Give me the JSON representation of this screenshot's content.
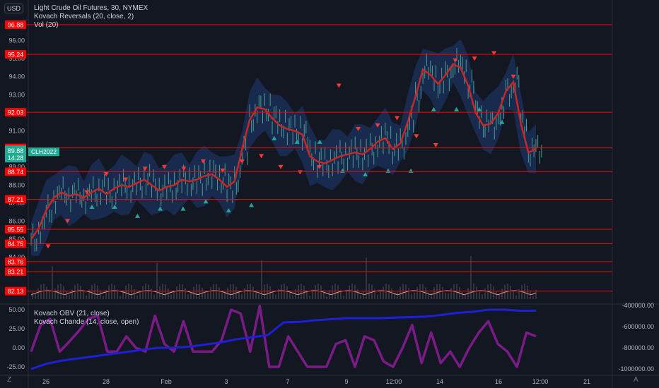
{
  "header": {
    "currency_button": "USD",
    "legend": [
      "Light Crude Oil Futures, 30, NYMEX",
      "Kovach Reversals (20, close, 2)",
      "Vol (20)"
    ],
    "lower_legend": [
      "Kovach OBV (21, close)",
      "Kovach Chande (14, close, open)"
    ]
  },
  "footer": {
    "z_button": "Z",
    "auto_button": "A"
  },
  "colors": {
    "background": "#131722",
    "level_line": "#ff0000",
    "level_tag": "#ff0000",
    "price_tag": "#22ab94",
    "ma_line": "#c62828",
    "band_fill": "#1e3a72",
    "candles": "#4a9d8f",
    "buy_marker": "#26a69a",
    "sell_marker": "#ef3b3b",
    "obv_line": "#1f1fd6",
    "chande_line": "#7b1b86",
    "volume_osc": "#e0a890"
  },
  "chart_data": [
    {
      "type": "line",
      "title": "Light Crude Oil Futures, 30, NYMEX",
      "x_ticks": [
        "26",
        "28",
        "Feb",
        "3",
        "7",
        "9",
        "12:00",
        "14",
        "16",
        "12:00",
        "21"
      ],
      "y_ticks": [
        "84.00",
        "85.00",
        "86.00",
        "87.00",
        "88.00",
        "89.00",
        "90.00",
        "91.00",
        "92.00",
        "93.00",
        "94.00",
        "95.00",
        "96.00"
      ],
      "ylim": [
        81.5,
        97.5
      ],
      "levels": [
        "96.88",
        "95.24",
        "92.03",
        "90.06",
        "88.74",
        "87.21",
        "85.55",
        "84.75",
        "83.76",
        "83.21",
        "82.13"
      ],
      "current_price": {
        "symbol": "CLH2022",
        "price": "89.88",
        "countdown": "14:28"
      },
      "series": [
        {
          "name": "Kovach Reversals (20, close, 2)",
          "values": [
            85.0,
            85.6,
            86.6,
            87.3,
            87.6,
            87.4,
            87.5,
            87.3,
            87.6,
            87.8,
            87.5,
            87.8,
            88.0,
            87.9,
            88.1,
            88.3,
            88.0,
            87.7,
            87.9,
            88.0,
            88.3,
            88.2,
            88.3,
            88.5,
            88.6,
            88.3,
            87.9,
            88.2,
            90.0,
            91.6,
            92.3,
            92.2,
            91.7,
            91.3,
            91.1,
            91.0,
            90.8,
            89.6,
            89.3,
            89.2,
            89.4,
            89.6,
            89.7,
            89.8,
            89.7,
            90.0,
            90.4,
            90.6,
            90.0,
            90.3,
            91.5,
            92.9,
            94.4,
            94.1,
            93.6,
            94.1,
            94.7,
            94.5,
            93.5,
            92.0,
            91.3,
            91.4,
            92.0,
            93.2,
            93.7,
            91.4,
            89.8,
            90.0
          ]
        }
      ],
      "signals": {
        "sell": [
          84.6,
          86.0,
          87.6,
          88.6,
          88.3,
          88.9,
          89.0,
          88.9,
          89.3,
          88.8,
          89.3,
          89.6,
          89.0,
          88.7,
          89.0,
          93.5,
          91.1,
          91.3,
          91.7,
          90.7,
          90.2,
          94.9,
          95.0,
          95.3,
          94.0
        ],
        "buy": [
          86.8,
          86.8,
          86.3,
          86.7,
          86.7,
          87.1,
          86.6,
          86.9,
          90.6,
          90.4,
          90.4,
          88.8,
          88.6,
          88.8,
          88.8,
          92.2,
          92.2,
          92.2,
          91.5
        ]
      }
    },
    {
      "type": "line",
      "y_ticks": [
        "-400000.00",
        "-600000.00",
        "-800000.00",
        "-1000000.00"
      ],
      "series": [
        {
          "name": "Kovach OBV (21, close)",
          "values": [
            -1000000,
            -950000,
            -920000,
            -900000,
            -880000,
            -860000,
            -840000,
            -820000,
            -800000,
            -800000,
            -790000,
            -770000,
            -750000,
            -720000,
            -700000,
            -680000,
            -560000,
            -555000,
            -540000,
            -530000,
            -520000,
            -520000,
            -520000,
            -515000,
            -510000,
            -505000,
            -490000,
            -470000,
            -460000,
            -440000,
            -440000,
            -450000,
            -450000
          ]
        }
      ]
    },
    {
      "type": "line",
      "y_ticks": [
        "50.00",
        "25.00",
        "0.00",
        "-25.00"
      ],
      "series": [
        {
          "name": "Kovach Chande (14, close, open)",
          "values": [
            -5,
            30,
            38,
            -5,
            8,
            22,
            38,
            42,
            -5,
            -5,
            15,
            0,
            -5,
            42,
            5,
            -5,
            35,
            -5,
            -5,
            -5,
            10,
            50,
            45,
            -5,
            55,
            -25,
            -25,
            15,
            -5,
            -25,
            -25,
            -25,
            5,
            10,
            -25,
            15,
            10,
            -18,
            -25,
            0,
            30,
            -20,
            20,
            -20,
            -5,
            -25,
            0,
            20,
            35,
            5,
            -5,
            -25,
            20,
            15
          ]
        }
      ]
    }
  ]
}
